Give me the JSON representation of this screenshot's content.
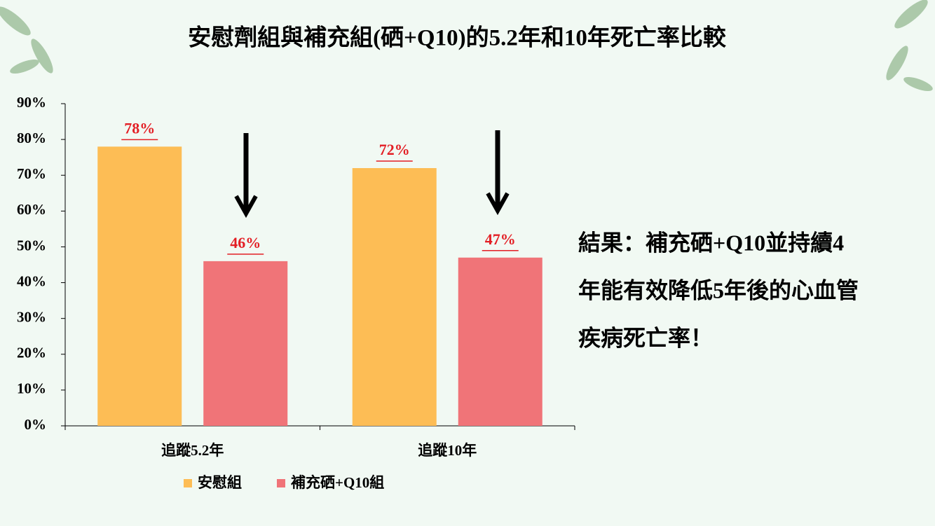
{
  "chart_data": {
    "type": "bar",
    "title": "安慰劑組與補充組(硒+Q10)的5.2年和10年死亡率比較",
    "categories": [
      "追蹤5.2年",
      "追蹤10年"
    ],
    "series": [
      {
        "name": "安慰組",
        "color": "#fdbd55",
        "values": [
          78,
          72
        ],
        "value_labels": [
          "78%",
          "72%"
        ]
      },
      {
        "name": "補充硒+Q10組",
        "color": "#f07478",
        "values": [
          46,
          47
        ],
        "value_labels": [
          "46%",
          "47%"
        ]
      }
    ],
    "ylim": [
      0,
      90
    ],
    "yticks": [
      {
        "value": 0,
        "label": "0%"
      },
      {
        "value": 10,
        "label": "10%"
      },
      {
        "value": 20,
        "label": "20%"
      },
      {
        "value": 30,
        "label": "30%"
      },
      {
        "value": 40,
        "label": "40%"
      },
      {
        "value": 50,
        "label": "50%"
      },
      {
        "value": 60,
        "label": "60%"
      },
      {
        "value": 70,
        "label": "70%"
      },
      {
        "value": 80,
        "label": "80%"
      },
      {
        "value": 90,
        "label": "90%"
      }
    ],
    "annotations": [
      "結果：補充硒+Q10並持續4",
      "年能有效降低5年後的心血管",
      "疾病死亡率！"
    ]
  }
}
